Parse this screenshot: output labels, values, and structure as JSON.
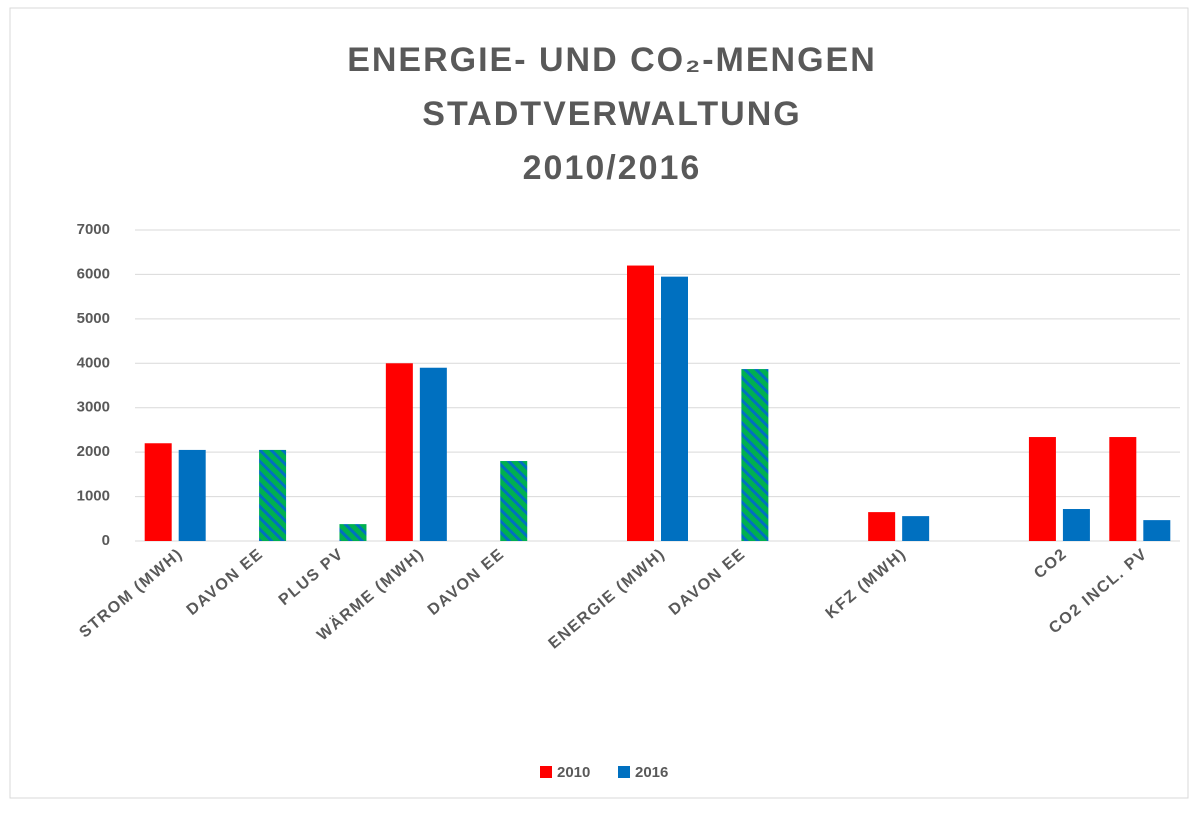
{
  "chart_data": {
    "type": "bar",
    "title": [
      "ENERGIE- UND CO₂-MENGEN",
      "STADTVERWALTUNG",
      "2010/2016"
    ],
    "categories": [
      "STROM (MWH)",
      "DAVON EE",
      "PLUS PV",
      "WÄRME (MWH)",
      "DAVON EE",
      null,
      "ENERGIE (MWH)",
      "DAVON EE",
      null,
      "KFZ (MWH)",
      null,
      "CO2",
      "CO2 INCL. PV"
    ],
    "series": [
      {
        "name": "2010",
        "color": "#ff0000",
        "values": [
          2200,
          null,
          null,
          4000,
          null,
          null,
          6200,
          null,
          null,
          650,
          null,
          2340,
          2340
        ]
      },
      {
        "name": "2016",
        "color": "#0070c0",
        "values": [
          2050,
          2050,
          380,
          3900,
          1800,
          null,
          5950,
          3870,
          null,
          560,
          null,
          720,
          470
        ],
        "hatch_color": "#00b050",
        "hatched": [
          false,
          true,
          true,
          false,
          true,
          false,
          false,
          true,
          false,
          false,
          false,
          false,
          false
        ]
      }
    ],
    "ylim": [
      0,
      7000
    ],
    "yticks": [
      0,
      1000,
      2000,
      3000,
      4000,
      5000,
      6000,
      7000
    ],
    "grid": true,
    "legend": "bottom"
  }
}
